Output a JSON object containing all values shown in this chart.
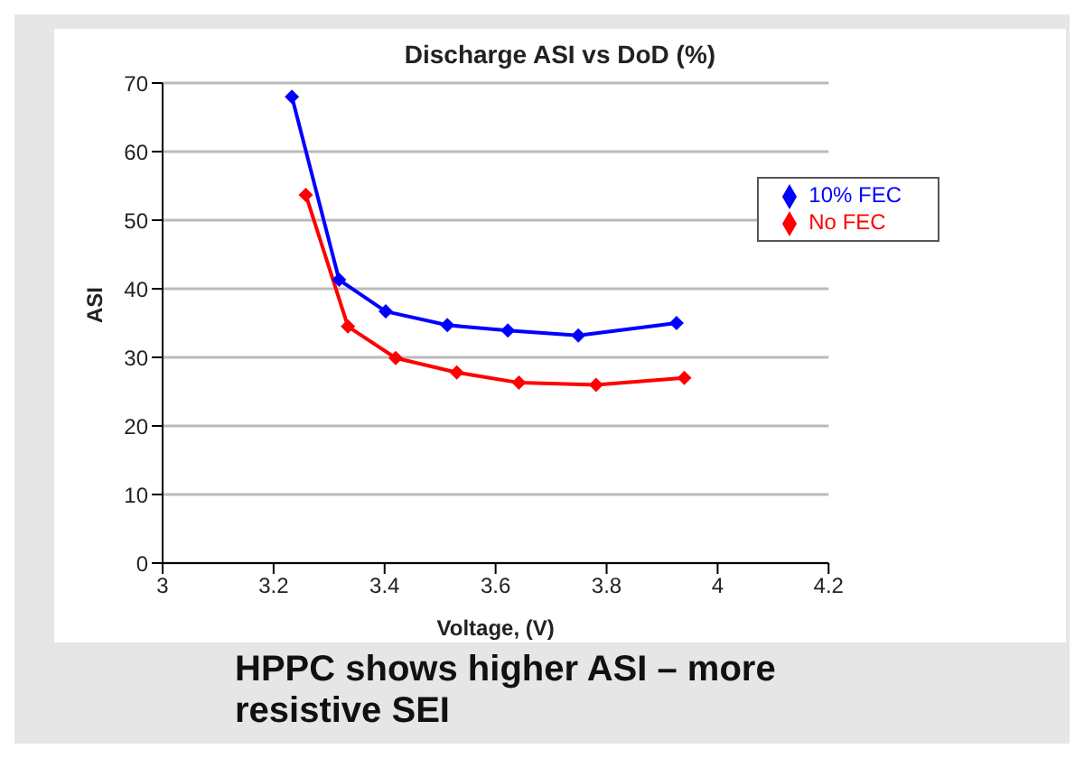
{
  "chart_data": {
    "type": "line",
    "title": "Discharge ASI vs DoD (%)",
    "xlabel": "Voltage, (V)",
    "ylabel": "ASI",
    "series": [
      {
        "name": "10% FEC",
        "color": "#0000ff",
        "x": [
          3.233,
          3.318,
          3.402,
          3.513,
          3.622,
          3.749,
          3.926
        ],
        "values": [
          68,
          41.3,
          36.7,
          34.7,
          33.9,
          33.2,
          35.0
        ]
      },
      {
        "name": "No FEC",
        "color": "#ff0000",
        "x": [
          3.258,
          3.334,
          3.42,
          3.53,
          3.642,
          3.781,
          3.94
        ],
        "values": [
          53.7,
          34.5,
          29.9,
          27.8,
          26.3,
          26.0,
          27.0
        ]
      }
    ],
    "xlim": [
      3,
      4.2
    ],
    "xticks": [
      3,
      3.2,
      3.4,
      3.6,
      3.8,
      4,
      4.2
    ],
    "ylim": [
      0,
      70
    ],
    "yticks": [
      0,
      10,
      20,
      30,
      40,
      50,
      60,
      70
    ],
    "grid": "y",
    "legend": "top right",
    "marker": "diamond",
    "line_style": "solid",
    "annotations": [
      "HPPC shows higher ASI – more resistive SEI"
    ]
  }
}
